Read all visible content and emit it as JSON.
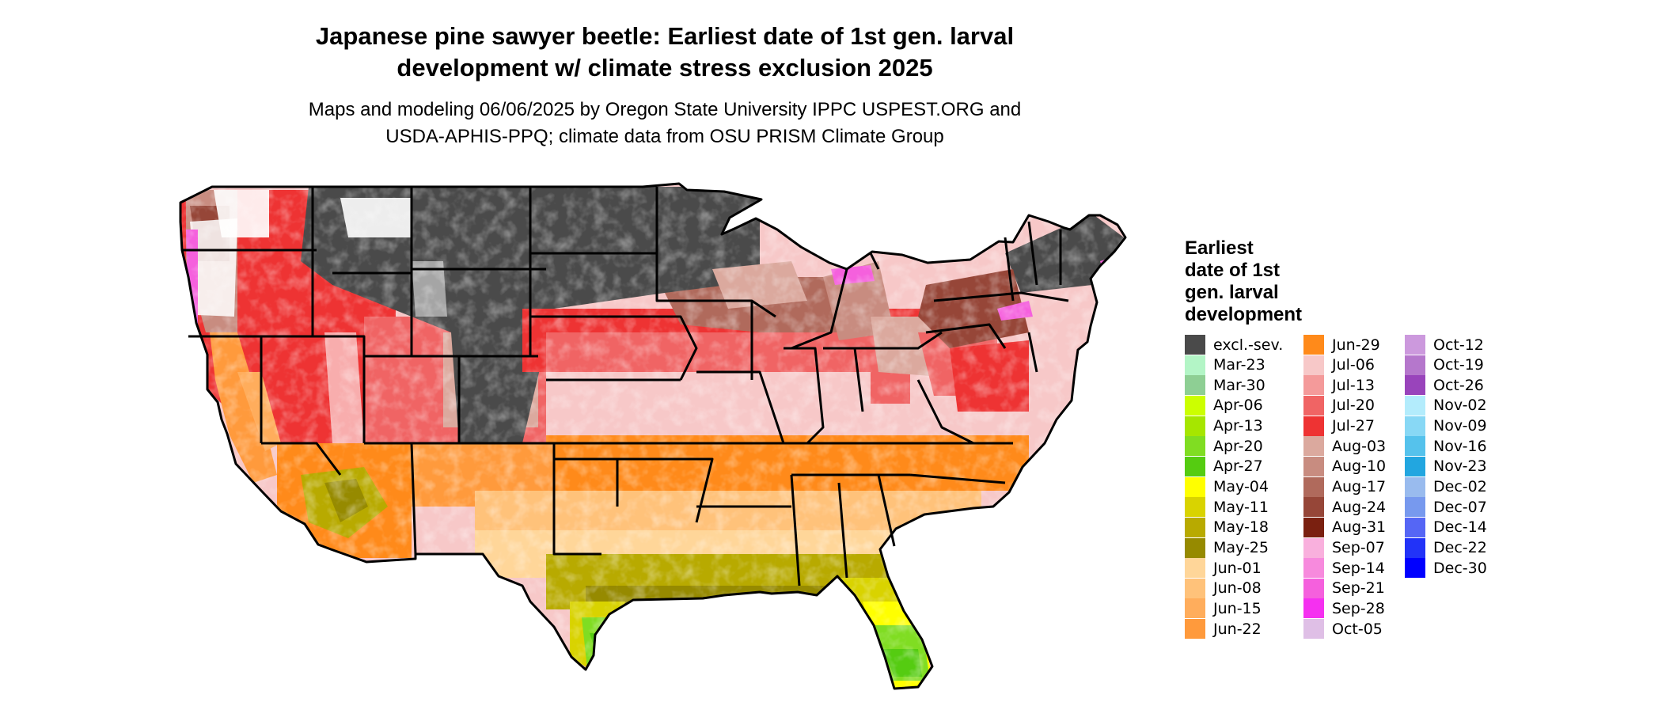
{
  "figure": {
    "title_line1": "Japanese pine sawyer beetle: Earliest date of 1st gen. larval",
    "title_line2": "development w/ climate stress exclusion 2025",
    "subtitle_line1": "Maps and modeling 06/06/2025 by Oregon State University IPPC USPEST.ORG and",
    "subtitle_line2": "USDA-APHIS-PPQ; climate data from OSU PRISM Climate Group"
  },
  "legend": {
    "title_lines": [
      "Earliest",
      "date of 1st",
      "gen. larval",
      "development"
    ],
    "items": [
      {
        "label": "excl.-sev.",
        "color": "#4a4a4a"
      },
      {
        "label": "Mar-23",
        "color": "#b3f5c6"
      },
      {
        "label": "Mar-30",
        "color": "#8ecf94"
      },
      {
        "label": "Apr-06",
        "color": "#ccff00"
      },
      {
        "label": "Apr-13",
        "color": "#a6e600"
      },
      {
        "label": "Apr-20",
        "color": "#80dd22"
      },
      {
        "label": "Apr-27",
        "color": "#55cc11"
      },
      {
        "label": "May-04",
        "color": "#ffff00"
      },
      {
        "label": "May-11",
        "color": "#d9d300"
      },
      {
        "label": "May-18",
        "color": "#b8aa00"
      },
      {
        "label": "May-25",
        "color": "#968a00"
      },
      {
        "label": "Jun-01",
        "color": "#ffd699"
      },
      {
        "label": "Jun-08",
        "color": "#ffc27a"
      },
      {
        "label": "Jun-15",
        "color": "#ffad5c"
      },
      {
        "label": "Jun-22",
        "color": "#ff9a3c"
      },
      {
        "label": "Jun-29",
        "color": "#ff8a1a"
      },
      {
        "label": "Jul-06",
        "color": "#f7c8c8"
      },
      {
        "label": "Jul-13",
        "color": "#f49a9a"
      },
      {
        "label": "Jul-20",
        "color": "#f06464"
      },
      {
        "label": "Jul-27",
        "color": "#ee3333"
      },
      {
        "label": "Aug-03",
        "color": "#dba99e"
      },
      {
        "label": "Aug-10",
        "color": "#c88c80"
      },
      {
        "label": "Aug-17",
        "color": "#b06a5c"
      },
      {
        "label": "Aug-24",
        "color": "#964638"
      },
      {
        "label": "Aug-31",
        "color": "#7a2010"
      },
      {
        "label": "Sep-07",
        "color": "#f9b0dd"
      },
      {
        "label": "Sep-14",
        "color": "#f78add"
      },
      {
        "label": "Sep-21",
        "color": "#f560dd"
      },
      {
        "label": "Sep-28",
        "color": "#f530f0"
      },
      {
        "label": "Oct-05",
        "color": "#dfbfe6"
      },
      {
        "label": "Oct-12",
        "color": "#cc99dd"
      },
      {
        "label": "Oct-19",
        "color": "#b577cc"
      },
      {
        "label": "Oct-26",
        "color": "#9944bb"
      },
      {
        "label": "Nov-02",
        "color": "#b3ecfc"
      },
      {
        "label": "Nov-09",
        "color": "#88d8f5"
      },
      {
        "label": "Nov-16",
        "color": "#55c2ec"
      },
      {
        "label": "Nov-23",
        "color": "#22a6e0"
      },
      {
        "label": "Dec-02",
        "color": "#99bbee"
      },
      {
        "label": "Dec-07",
        "color": "#7799ee"
      },
      {
        "label": "Dec-14",
        "color": "#5566f5"
      },
      {
        "label": "Dec-22",
        "color": "#2233f8"
      },
      {
        "label": "Dec-30",
        "color": "#0000ff"
      }
    ]
  }
}
